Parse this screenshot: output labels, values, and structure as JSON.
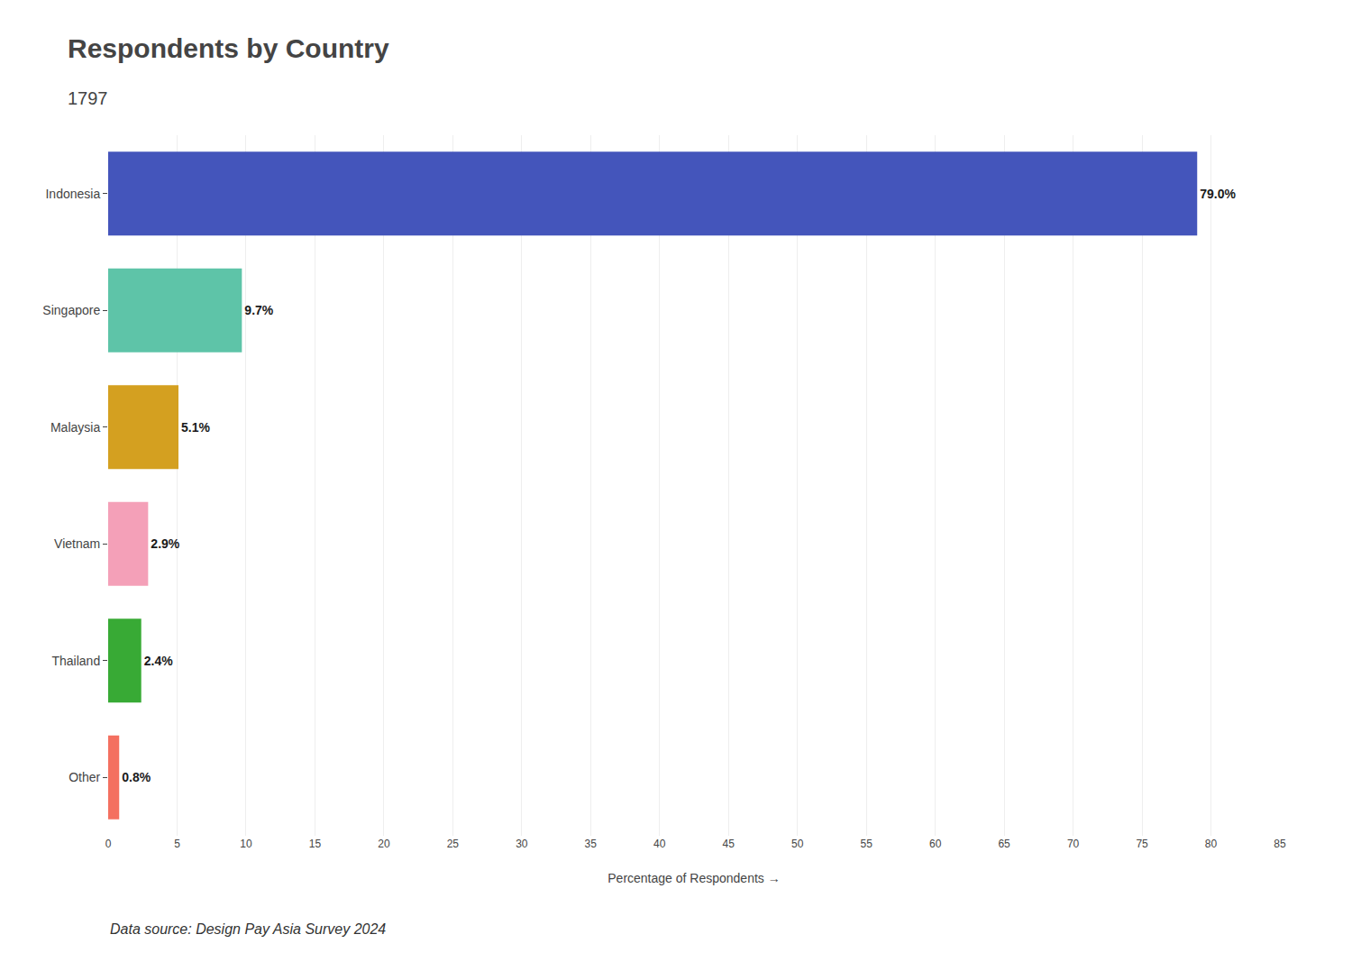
{
  "chart_data": {
    "type": "bar",
    "orientation": "horizontal",
    "title": "Respondents by Country",
    "subtitle": "1797",
    "annotations": [
      "Data source: Design Pay Asia Survey 2024"
    ],
    "xlabel": "Percentage of Respondents →",
    "categories": [
      "Indonesia",
      "Singapore",
      "Malaysia",
      "Vietnam",
      "Thailand",
      "Other"
    ],
    "values": [
      79.0,
      9.7,
      5.1,
      2.9,
      2.4,
      0.8
    ],
    "value_labels": [
      "79.0%",
      "9.7%",
      "5.1%",
      "2.9%",
      "2.4%",
      "0.8%"
    ],
    "colors": [
      "#4455bb",
      "#5ec4a8",
      "#d4a020",
      "#f4a0b8",
      "#38aa35",
      "#f47060"
    ],
    "xlim": [
      0,
      85
    ],
    "xticks": [
      0,
      5,
      10,
      15,
      20,
      25,
      30,
      35,
      40,
      45,
      50,
      55,
      60,
      65,
      70,
      75,
      80,
      85
    ],
    "grid": true,
    "data_labels": true
  }
}
